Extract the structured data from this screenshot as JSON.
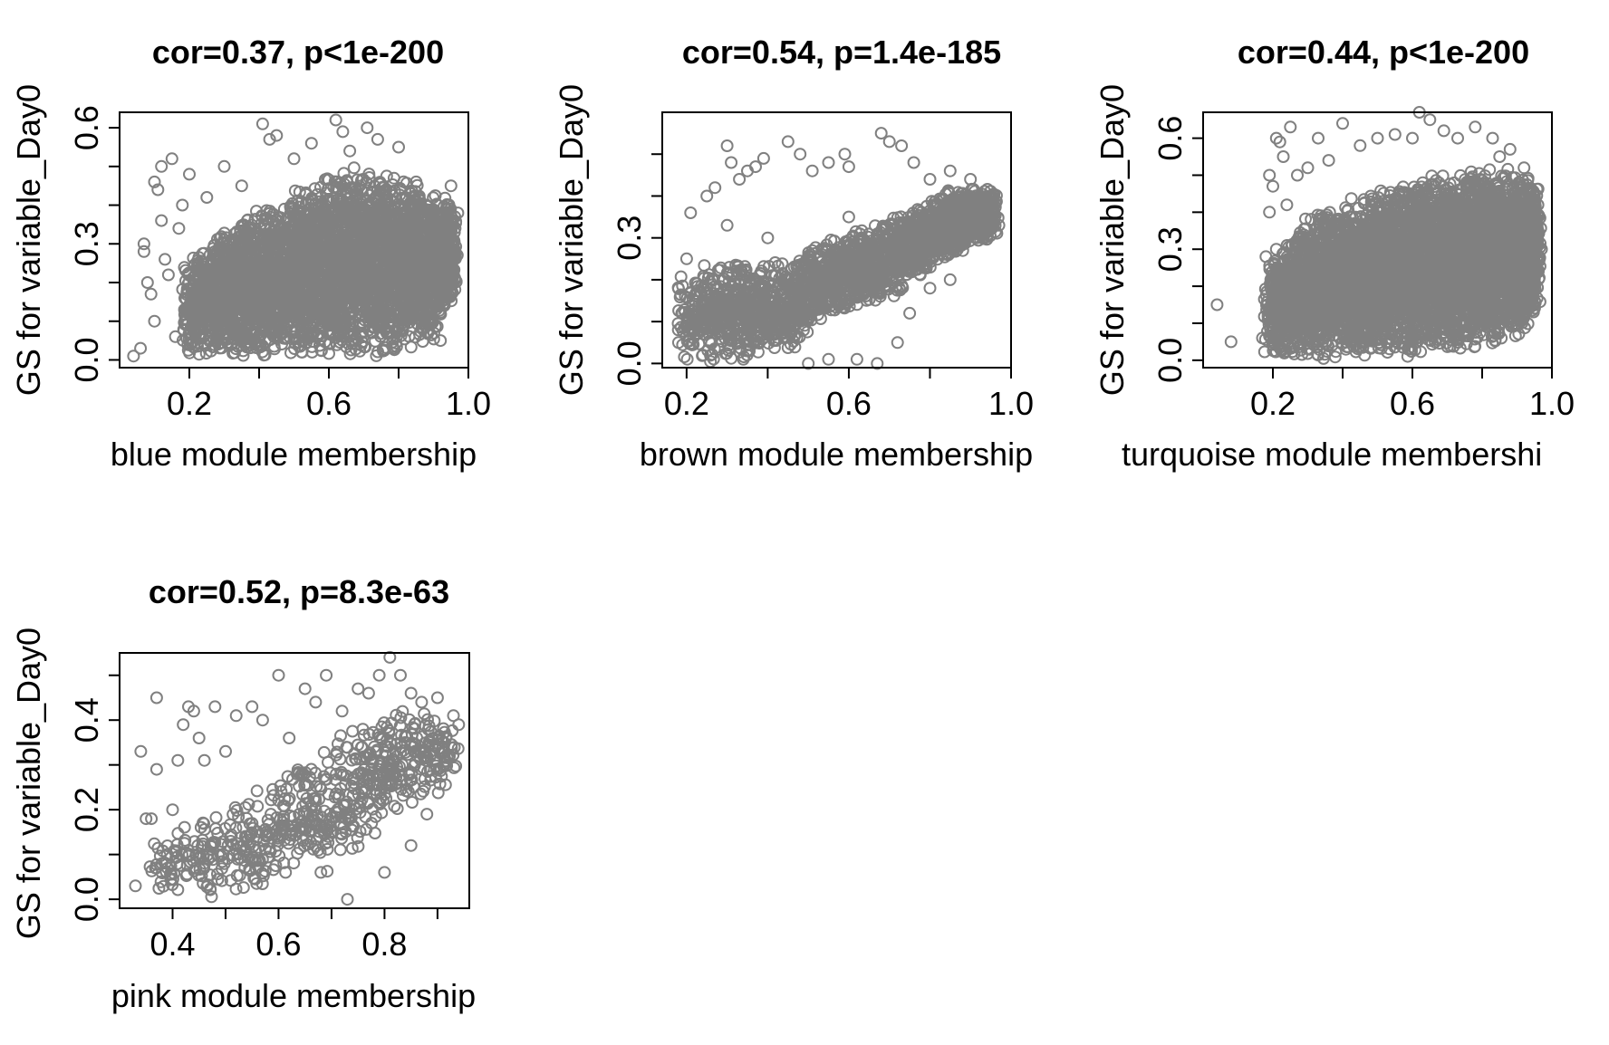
{
  "figure": {
    "point_color": "#808080",
    "point_shape": "open-circle"
  },
  "chart_data": [
    {
      "type": "scatter",
      "title": "cor=0.37, p<1e-200",
      "xlabel": "blue module membership",
      "ylabel": "GS for variable_Day0",
      "xlim": [
        0.0,
        1.0
      ],
      "ylim": [
        -0.02,
        0.64
      ],
      "xticks": [
        0.2,
        0.4,
        0.6,
        0.8,
        1.0
      ],
      "xtick_labels": [
        "0.2",
        "",
        "0.6",
        "",
        "1.0"
      ],
      "yticks": [
        0.0,
        0.1,
        0.2,
        0.3,
        0.4,
        0.5,
        0.6
      ],
      "ytick_labels": [
        "0.0",
        "",
        "",
        "0.3",
        "",
        "",
        "0.6"
      ],
      "n_points": 4200,
      "points": [
        [
          0.04,
          0.01
        ],
        [
          0.06,
          0.03
        ],
        [
          0.07,
          0.3
        ],
        [
          0.07,
          0.28
        ],
        [
          0.08,
          0.2
        ],
        [
          0.09,
          0.17
        ],
        [
          0.1,
          0.1
        ],
        [
          0.1,
          0.46
        ],
        [
          0.11,
          0.44
        ],
        [
          0.12,
          0.5
        ],
        [
          0.12,
          0.36
        ],
        [
          0.13,
          0.26
        ],
        [
          0.14,
          0.22
        ],
        [
          0.15,
          0.52
        ],
        [
          0.16,
          0.06
        ],
        [
          0.17,
          0.34
        ],
        [
          0.18,
          0.4
        ],
        [
          0.2,
          0.48
        ],
        [
          0.41,
          0.61
        ],
        [
          0.43,
          0.57
        ],
        [
          0.45,
          0.58
        ],
        [
          0.55,
          0.56
        ],
        [
          0.62,
          0.62
        ],
        [
          0.64,
          0.59
        ],
        [
          0.71,
          0.6
        ],
        [
          0.74,
          0.57
        ],
        [
          0.8,
          0.55
        ],
        [
          0.85,
          0.46
        ],
        [
          0.88,
          0.4
        ],
        [
          0.9,
          0.31
        ],
        [
          0.95,
          0.45
        ],
        [
          0.94,
          0.35
        ],
        [
          0.96,
          0.33
        ],
        [
          0.92,
          0.05
        ],
        [
          0.97,
          0.38
        ],
        [
          0.3,
          0.5
        ],
        [
          0.25,
          0.42
        ],
        [
          0.35,
          0.45
        ],
        [
          0.5,
          0.52
        ],
        [
          0.66,
          0.54
        ]
      ],
      "band": [
        [
          0.18,
          0.0,
          0.26
        ],
        [
          0.3,
          0.0,
          0.35
        ],
        [
          0.45,
          0.0,
          0.42
        ],
        [
          0.6,
          0.0,
          0.5
        ],
        [
          0.75,
          0.0,
          0.5
        ],
        [
          0.9,
          0.05,
          0.45
        ],
        [
          0.96,
          0.15,
          0.4
        ]
      ]
    },
    {
      "type": "scatter",
      "title": "cor=0.54, p=1.4e-185",
      "xlabel": "brown module membership",
      "ylabel": "GS for variable_Day0",
      "xlim": [
        0.14,
        1.0
      ],
      "ylim": [
        -0.01,
        0.6
      ],
      "xticks": [
        0.2,
        0.4,
        0.6,
        0.8,
        1.0
      ],
      "xtick_labels": [
        "0.2",
        "",
        "0.6",
        "",
        "1.0"
      ],
      "yticks": [
        0.0,
        0.1,
        0.2,
        0.3,
        0.4,
        0.5
      ],
      "ytick_labels": [
        "0.0",
        "",
        "",
        "0.3",
        "",
        ""
      ],
      "n_points": 2300,
      "points": [
        [
          0.18,
          0.05
        ],
        [
          0.19,
          0.12
        ],
        [
          0.2,
          0.25
        ],
        [
          0.21,
          0.36
        ],
        [
          0.22,
          0.08
        ],
        [
          0.25,
          0.4
        ],
        [
          0.27,
          0.42
        ],
        [
          0.3,
          0.52
        ],
        [
          0.31,
          0.48
        ],
        [
          0.33,
          0.44
        ],
        [
          0.35,
          0.46
        ],
        [
          0.37,
          0.47
        ],
        [
          0.39,
          0.49
        ],
        [
          0.45,
          0.53
        ],
        [
          0.48,
          0.5
        ],
        [
          0.51,
          0.46
        ],
        [
          0.55,
          0.48
        ],
        [
          0.59,
          0.5
        ],
        [
          0.6,
          0.47
        ],
        [
          0.68,
          0.55
        ],
        [
          0.7,
          0.53
        ],
        [
          0.73,
          0.52
        ],
        [
          0.76,
          0.48
        ],
        [
          0.8,
          0.44
        ],
        [
          0.85,
          0.46
        ],
        [
          0.9,
          0.44
        ],
        [
          0.95,
          0.4
        ],
        [
          0.97,
          0.33
        ],
        [
          0.5,
          0.0
        ],
        [
          0.55,
          0.01
        ],
        [
          0.62,
          0.01
        ],
        [
          0.67,
          0.0
        ],
        [
          0.72,
          0.05
        ],
        [
          0.75,
          0.12
        ],
        [
          0.8,
          0.18
        ],
        [
          0.85,
          0.2
        ],
        [
          0.93,
          0.3
        ],
        [
          0.4,
          0.3
        ],
        [
          0.3,
          0.33
        ],
        [
          0.45,
          0.2
        ],
        [
          0.6,
          0.35
        ],
        [
          0.24,
          0.02
        ],
        [
          0.34,
          0.01
        ]
      ],
      "band": [
        [
          0.18,
          0.0,
          0.22
        ],
        [
          0.3,
          0.0,
          0.25
        ],
        [
          0.45,
          0.02,
          0.25
        ],
        [
          0.55,
          0.1,
          0.3
        ],
        [
          0.7,
          0.15,
          0.35
        ],
        [
          0.85,
          0.25,
          0.42
        ],
        [
          0.96,
          0.3,
          0.42
        ]
      ]
    },
    {
      "type": "scatter",
      "title": "cor=0.44, p<1e-200",
      "xlabel": "turquoise module membershi",
      "ylabel": "GS for variable_Day0",
      "xlim": [
        0.0,
        1.0
      ],
      "ylim": [
        -0.02,
        0.67
      ],
      "xticks": [
        0.2,
        0.4,
        0.6,
        0.8,
        1.0
      ],
      "xtick_labels": [
        "0.2",
        "",
        "0.6",
        "",
        "1.0"
      ],
      "yticks": [
        0.0,
        0.1,
        0.2,
        0.3,
        0.4,
        0.5,
        0.6
      ],
      "ytick_labels": [
        "0.0",
        "",
        "",
        "0.3",
        "",
        "",
        "0.6"
      ],
      "n_points": 5600,
      "points": [
        [
          0.04,
          0.15
        ],
        [
          0.08,
          0.05
        ],
        [
          0.17,
          0.06
        ],
        [
          0.18,
          0.28
        ],
        [
          0.19,
          0.4
        ],
        [
          0.19,
          0.5
        ],
        [
          0.2,
          0.47
        ],
        [
          0.21,
          0.6
        ],
        [
          0.22,
          0.59
        ],
        [
          0.23,
          0.55
        ],
        [
          0.25,
          0.63
        ],
        [
          0.27,
          0.5
        ],
        [
          0.3,
          0.52
        ],
        [
          0.33,
          0.6
        ],
        [
          0.36,
          0.54
        ],
        [
          0.4,
          0.64
        ],
        [
          0.45,
          0.58
        ],
        [
          0.5,
          0.6
        ],
        [
          0.55,
          0.61
        ],
        [
          0.6,
          0.6
        ],
        [
          0.62,
          0.67
        ],
        [
          0.65,
          0.65
        ],
        [
          0.69,
          0.62
        ],
        [
          0.73,
          0.6
        ],
        [
          0.78,
          0.63
        ],
        [
          0.83,
          0.6
        ],
        [
          0.88,
          0.57
        ],
        [
          0.92,
          0.52
        ],
        [
          0.96,
          0.42
        ],
        [
          0.97,
          0.3
        ],
        [
          0.85,
          0.55
        ],
        [
          0.21,
          0.3
        ],
        [
          0.24,
          0.42
        ]
      ],
      "band": [
        [
          0.18,
          0.0,
          0.26
        ],
        [
          0.3,
          0.0,
          0.4
        ],
        [
          0.45,
          0.0,
          0.45
        ],
        [
          0.6,
          0.0,
          0.5
        ],
        [
          0.75,
          0.02,
          0.52
        ],
        [
          0.9,
          0.05,
          0.52
        ],
        [
          0.96,
          0.12,
          0.48
        ]
      ]
    },
    {
      "type": "scatter",
      "title": "cor=0.52, p=8.3e-63",
      "xlabel": "pink module membership",
      "ylabel": "GS for variable_Day0",
      "xlim": [
        0.3,
        0.96
      ],
      "ylim": [
        -0.02,
        0.55
      ],
      "xticks": [
        0.4,
        0.5,
        0.6,
        0.7,
        0.8,
        0.9
      ],
      "xtick_labels": [
        "0.4",
        "",
        "0.6",
        "",
        "0.8",
        ""
      ],
      "yticks": [
        0.0,
        0.1,
        0.2,
        0.3,
        0.4,
        0.5
      ],
      "ytick_labels": [
        "0.0",
        "",
        "0.2",
        "",
        "0.4",
        ""
      ],
      "n_points": 650,
      "points": [
        [
          0.33,
          0.03
        ],
        [
          0.34,
          0.33
        ],
        [
          0.35,
          0.18
        ],
        [
          0.36,
          0.18
        ],
        [
          0.37,
          0.45
        ],
        [
          0.37,
          0.29
        ],
        [
          0.38,
          0.08
        ],
        [
          0.39,
          0.1
        ],
        [
          0.4,
          0.2
        ],
        [
          0.41,
          0.31
        ],
        [
          0.42,
          0.39
        ],
        [
          0.43,
          0.43
        ],
        [
          0.44,
          0.42
        ],
        [
          0.45,
          0.36
        ],
        [
          0.46,
          0.31
        ],
        [
          0.48,
          0.43
        ],
        [
          0.5,
          0.33
        ],
        [
          0.52,
          0.41
        ],
        [
          0.55,
          0.43
        ],
        [
          0.57,
          0.4
        ],
        [
          0.6,
          0.5
        ],
        [
          0.62,
          0.36
        ],
        [
          0.65,
          0.47
        ],
        [
          0.67,
          0.44
        ],
        [
          0.69,
          0.5
        ],
        [
          0.72,
          0.42
        ],
        [
          0.75,
          0.47
        ],
        [
          0.77,
          0.46
        ],
        [
          0.79,
          0.5
        ],
        [
          0.81,
          0.54
        ],
        [
          0.83,
          0.5
        ],
        [
          0.85,
          0.46
        ],
        [
          0.87,
          0.44
        ],
        [
          0.9,
          0.45
        ],
        [
          0.93,
          0.41
        ],
        [
          0.94,
          0.39
        ],
        [
          0.8,
          0.06
        ],
        [
          0.85,
          0.12
        ],
        [
          0.88,
          0.19
        ],
        [
          0.73,
          0.0
        ],
        [
          0.68,
          0.06
        ]
      ],
      "band": [
        [
          0.36,
          0.0,
          0.14
        ],
        [
          0.45,
          0.0,
          0.2
        ],
        [
          0.55,
          0.0,
          0.25
        ],
        [
          0.65,
          0.03,
          0.32
        ],
        [
          0.75,
          0.1,
          0.4
        ],
        [
          0.85,
          0.2,
          0.44
        ],
        [
          0.93,
          0.25,
          0.42
        ]
      ]
    }
  ]
}
